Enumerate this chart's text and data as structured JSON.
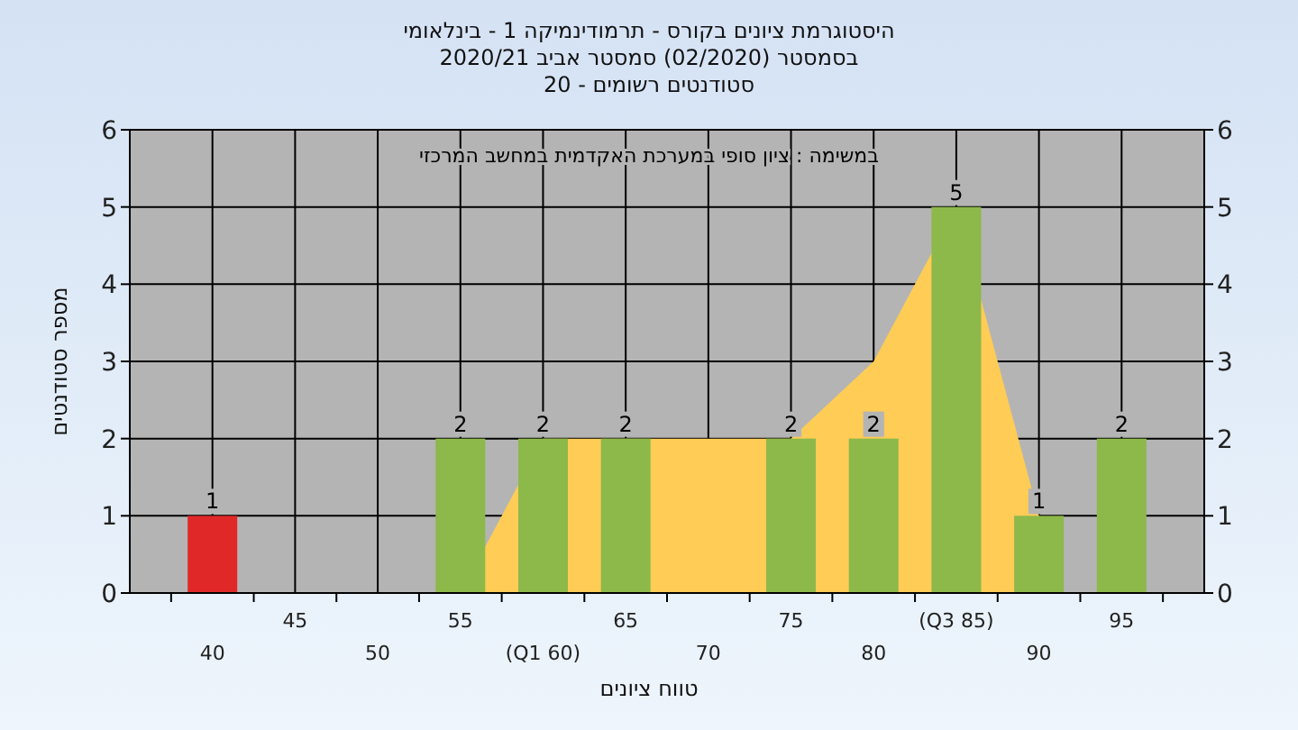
{
  "chart_data": {
    "type": "bar",
    "title": "היסטוגרמת ציונים בקורס - תרמודינמיקה 1 - בינלאומי",
    "subtitle": "בסמסטר  (02/2020)  סמסטר אביב 2020/21\nסטודנטים רשומים - 20",
    "xlabel": "טווח ציונים",
    "ylabel": "מספר סטודנטים",
    "annotations": [
      "במשימה : ציון סופי במערכת האקדמית במחשב המרכזי"
    ],
    "categories": [
      "40",
      "45",
      "50",
      "55",
      "(Q1 60)",
      "65",
      "70",
      "75",
      "80",
      "(Q3 85)",
      "90",
      "95"
    ],
    "series": [
      {
        "type": "area",
        "color": "#ffcc55",
        "values": [
          null,
          null,
          null,
          0,
          2,
          2,
          2,
          2,
          3,
          5,
          1,
          null
        ]
      },
      {
        "colors": [
          "#e02828",
          "#8db84a",
          "#8db84a",
          "#8db84a",
          "#8db84a",
          "#8db84a",
          "#8db84a",
          "#8db84a",
          "#8db84a",
          "#8db84a",
          "#8db84a",
          "#8db84a"
        ],
        "values": [
          1,
          0,
          0,
          2,
          2,
          2,
          0,
          2,
          2,
          5,
          1,
          2
        ],
        "value_labels": [
          "1",
          null,
          null,
          "2",
          "2",
          "2",
          null,
          "2",
          "2",
          "5",
          "1",
          "2"
        ]
      }
    ],
    "ylim": [
      0,
      6
    ],
    "yticks": [
      0,
      1,
      2,
      3,
      4,
      5,
      6
    ],
    "y2lim": [
      0,
      6
    ],
    "y2ticks": [
      0,
      1,
      2,
      3,
      4,
      5,
      6
    ],
    "grid": true
  }
}
